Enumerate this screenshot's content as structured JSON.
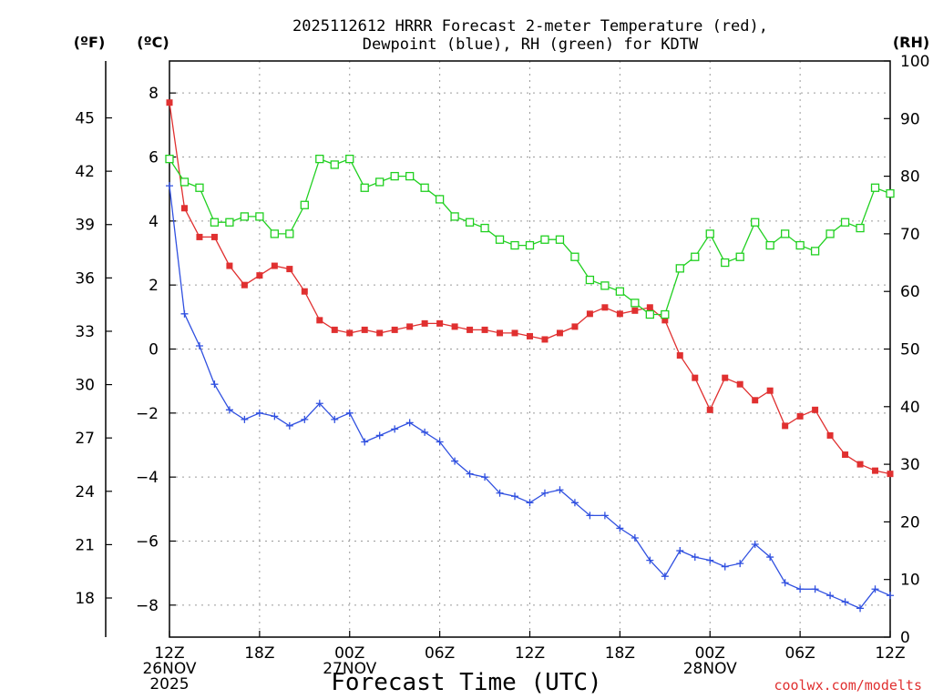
{
  "chart_data": {
    "type": "line",
    "title_lines": [
      "2025112612 HRRR Forecast 2-meter Temperature (red),",
      "Dewpoint (blue), RH (green) for KDTW"
    ],
    "xlabel": "Forecast Time (UTC)",
    "x_hours": [
      0,
      1,
      2,
      3,
      4,
      5,
      6,
      7,
      8,
      9,
      10,
      11,
      12,
      13,
      14,
      15,
      16,
      17,
      18,
      19,
      20,
      21,
      22,
      23,
      24,
      25,
      26,
      27,
      28,
      29,
      30,
      31,
      32,
      33,
      34,
      35,
      36,
      37,
      38,
      39,
      40,
      41,
      42,
      43,
      44,
      45,
      46,
      47,
      48
    ],
    "x_range": [
      0,
      48
    ],
    "x_ticks": [
      {
        "hour": 0,
        "lines": [
          "12Z",
          "26NOV",
          "2025"
        ]
      },
      {
        "hour": 6,
        "lines": [
          "18Z"
        ]
      },
      {
        "hour": 12,
        "lines": [
          "00Z",
          "27NOV"
        ]
      },
      {
        "hour": 18,
        "lines": [
          "06Z"
        ]
      },
      {
        "hour": 24,
        "lines": [
          "12Z"
        ]
      },
      {
        "hour": 30,
        "lines": [
          "18Z"
        ]
      },
      {
        "hour": 36,
        "lines": [
          "00Z",
          "28NOV"
        ]
      },
      {
        "hour": 42,
        "lines": [
          "06Z"
        ]
      },
      {
        "hour": 48,
        "lines": [
          "12Z"
        ]
      }
    ],
    "left_axis_c": {
      "label": "(ºC)",
      "range": [
        -9,
        9
      ],
      "ticks": [
        8,
        6,
        4,
        2,
        0,
        -2,
        -4,
        -6,
        -8
      ]
    },
    "left_axis_f": {
      "label": "(ºF)",
      "range": [
        15.8,
        48.2
      ],
      "ticks": [
        45,
        42,
        39,
        36,
        33,
        30,
        27,
        24,
        21,
        18
      ]
    },
    "right_axis_rh": {
      "label": "(RH)",
      "range": [
        0,
        100
      ],
      "ticks": [
        100,
        90,
        80,
        70,
        60,
        50,
        40,
        30,
        20,
        10,
        0
      ]
    },
    "series": [
      {
        "name": "2-meter Temperature",
        "axis": "celsius",
        "color": "#e03030",
        "marker": "filled-square",
        "values": [
          7.7,
          4.4,
          3.5,
          3.5,
          2.6,
          2.0,
          2.3,
          2.6,
          2.5,
          1.8,
          0.9,
          0.6,
          0.5,
          0.6,
          0.5,
          0.6,
          0.7,
          0.8,
          0.8,
          0.7,
          0.6,
          0.6,
          0.5,
          0.5,
          0.4,
          0.3,
          0.5,
          0.7,
          1.1,
          1.3,
          1.1,
          1.2,
          1.3,
          0.9,
          -0.2,
          -0.9,
          -1.9,
          -0.9,
          -1.1,
          -1.6,
          -1.3,
          -2.4,
          -2.1,
          -1.9,
          -2.7,
          -3.3,
          -3.6,
          -3.8,
          -3.9
        ]
      },
      {
        "name": "Dewpoint",
        "axis": "celsius",
        "color": "#3050e0",
        "marker": "plus",
        "values": [
          5.1,
          1.1,
          0.1,
          -1.1,
          -1.9,
          -2.2,
          -2.0,
          -2.1,
          -2.4,
          -2.2,
          -1.7,
          -2.2,
          -2.0,
          -2.9,
          -2.7,
          -2.5,
          -2.3,
          -2.6,
          -2.9,
          -3.5,
          -3.9,
          -4.0,
          -4.5,
          -4.6,
          -4.8,
          -4.5,
          -4.4,
          -4.8,
          -5.2,
          -5.2,
          -5.6,
          -5.9,
          -6.6,
          -7.1,
          -6.3,
          -6.5,
          -6.6,
          -6.8,
          -6.7,
          -6.1,
          -6.5,
          -7.3,
          -7.5,
          -7.5,
          -7.7,
          -7.9,
          -8.1,
          -7.5,
          -7.7
        ]
      },
      {
        "name": "RH",
        "axis": "rh",
        "color": "#20d020",
        "marker": "open-square",
        "values": [
          83,
          79,
          78,
          72,
          72,
          73,
          73,
          70,
          70,
          75,
          83,
          82,
          83,
          78,
          79,
          80,
          80,
          78,
          76,
          73,
          72,
          71,
          69,
          68,
          68,
          69,
          69,
          66,
          62,
          61,
          60,
          58,
          56,
          56,
          64,
          66,
          70,
          65,
          66,
          72,
          68,
          70,
          68,
          67,
          70,
          72,
          71,
          78,
          77
        ]
      }
    ],
    "credit": "coolwx.com/modelts"
  }
}
